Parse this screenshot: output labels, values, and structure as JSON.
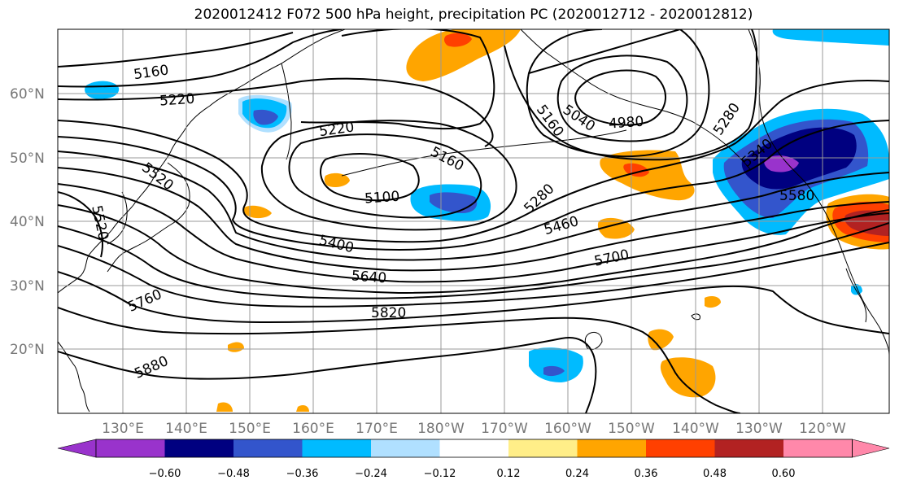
{
  "title": "2020012412 F072 500 hPa height, precipitation PC (2020012712 - 2020012812)",
  "map": {
    "lat_labels": [
      "60°N",
      "50°N",
      "40°N",
      "30°N",
      "20°N"
    ],
    "lon_labels": [
      "130°E",
      "140°E",
      "150°E",
      "160°E",
      "170°E",
      "180°W",
      "170°W",
      "160°W",
      "150°W",
      "140°W",
      "130°W",
      "120°W"
    ],
    "contour_labels": [
      "5160",
      "5220",
      "5220",
      "5160",
      "5100",
      "4980",
      "5040",
      "5160",
      "5280",
      "5280",
      "5340",
      "5460",
      "5400",
      "5580",
      "5640",
      "5700",
      "5520",
      "5520",
      "5760",
      "5820",
      "5880"
    ],
    "colors": {
      "neg_extreme": "#9933cc",
      "neg_048": "#000080",
      "neg_036": "#3355cc",
      "neg_024": "#00bbff",
      "neg_012": "#b0e0ff",
      "pos_012": "#ffee88",
      "pos_024": "#ffa500",
      "pos_036": "#ff4000",
      "pos_048": "#b22222",
      "pos_extreme": "#ff88aa",
      "contour": "#000000",
      "grid": "#999999"
    }
  },
  "colorbar": {
    "levels": [
      "−0.60",
      "−0.48",
      "−0.36",
      "−0.24",
      "−0.12",
      "0.12",
      "0.24",
      "0.36",
      "0.48",
      "0.60"
    ],
    "colors": [
      "#9933cc",
      "#000080",
      "#3355cc",
      "#00bbff",
      "#b0e0ff",
      "#ffffff",
      "#ffee88",
      "#ffa500",
      "#ff4000",
      "#b22222",
      "#ff88aa"
    ]
  }
}
